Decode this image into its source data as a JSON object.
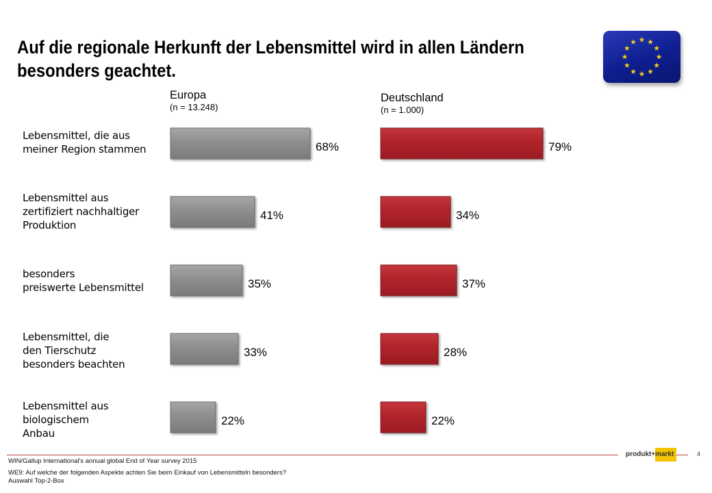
{
  "slide": {
    "title_lines": [
      "Auf die regionale Herkunft der Lebensmittel wird in allen Ländern",
      "besonders geachtet."
    ],
    "page_number": "4",
    "logo_text": "produkt+markt",
    "source_lines": [
      "WIN/Gallup International's annual global End of Year survey 2015",
      "WE9: Auf welche der folgenden Aspekte achten Sie beim Einkauf von Lebensmitteln besonders?",
      "Auswahl Top-2-Box"
    ]
  },
  "flag": {
    "icon": "eu-flag-icon",
    "background": "#15248f",
    "star_color": "#f7d117"
  },
  "chart_data": {
    "type": "bar",
    "orientation": "horizontal",
    "title": "Auf die regionale Herkunft der Lebensmittel wird in allen Ländern besonders geachtet.",
    "categories": [
      [
        "Lebensmittel, die aus",
        "meiner Region stammen"
      ],
      [
        "Lebensmittel aus",
        "zertifiziert nachhaltiger",
        "Produktion"
      ],
      [
        "besonders",
        "preiswerte Lebensmittel"
      ],
      [
        "Lebensmittel, die",
        "den Tierschutz",
        "besonders beachten"
      ],
      [
        "Lebensmittel aus",
        "biologischem",
        "Anbau"
      ]
    ],
    "series": [
      {
        "name": "Europa",
        "sample": "(n = 13.248)",
        "values": [
          68,
          41,
          35,
          33,
          22
        ],
        "labels": [
          "68%",
          "41%",
          "35%",
          "33%",
          "22%"
        ],
        "color": "#8c8c8c"
      },
      {
        "name": "Deutschland",
        "sample": "(n = 1.000)",
        "values": [
          79,
          34,
          37,
          28,
          22
        ],
        "labels": [
          "79%",
          "34%",
          "37%",
          "28%",
          "22%"
        ],
        "color": "#b0242b"
      }
    ],
    "unit": "%",
    "xlim": [
      0,
      100
    ]
  }
}
